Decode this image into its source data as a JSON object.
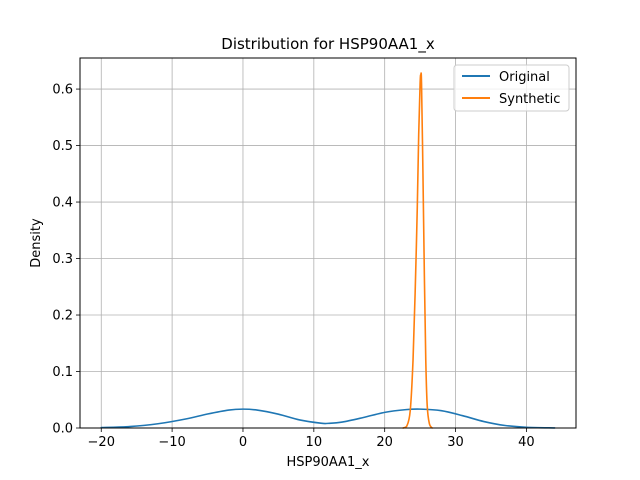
{
  "chart_data": {
    "type": "line",
    "title": "Distribution for HSP90AA1_x",
    "xlabel": "HSP90AA1_x",
    "ylabel": "Density",
    "xlim": [
      -23,
      47
    ],
    "ylim": [
      0,
      0.655
    ],
    "xticks": [
      -20,
      -10,
      0,
      10,
      20,
      30,
      40
    ],
    "yticks": [
      0.0,
      0.1,
      0.2,
      0.3,
      0.4,
      0.5,
      0.6
    ],
    "xtick_labels": [
      "−20",
      "−10",
      "0",
      "10",
      "20",
      "30",
      "40"
    ],
    "ytick_labels": [
      "0.0",
      "0.1",
      "0.2",
      "0.3",
      "0.4",
      "0.5",
      "0.6"
    ],
    "grid": true,
    "legend_position": "top-right",
    "series": [
      {
        "name": "Original",
        "color": "#1f77b4",
        "x": [
          -20,
          -16,
          -12,
          -8,
          -5,
          -2,
          0,
          2,
          5,
          8,
          11,
          12,
          14,
          17,
          20,
          23,
          25,
          28,
          31,
          34,
          37,
          40,
          44
        ],
        "y": [
          0.0007,
          0.0025,
          0.0075,
          0.0162,
          0.0248,
          0.0318,
          0.0334,
          0.0318,
          0.0245,
          0.0143,
          0.0085,
          0.0082,
          0.0105,
          0.0186,
          0.0277,
          0.0325,
          0.0334,
          0.0306,
          0.0218,
          0.0114,
          0.0044,
          0.0013,
          0.0002
        ]
      },
      {
        "name": "Synthetic",
        "color": "#ff7f0e",
        "x": [
          22.6,
          23.1,
          23.6,
          24.0,
          24.3,
          24.6,
          24.8,
          25.0,
          25.1,
          25.2,
          25.4,
          25.6,
          25.8,
          26.0,
          26.3,
          26.7
        ],
        "y": [
          0.0,
          0.003,
          0.03,
          0.12,
          0.24,
          0.39,
          0.52,
          0.61,
          0.625,
          0.61,
          0.45,
          0.27,
          0.12,
          0.04,
          0.008,
          0.0
        ]
      }
    ]
  }
}
